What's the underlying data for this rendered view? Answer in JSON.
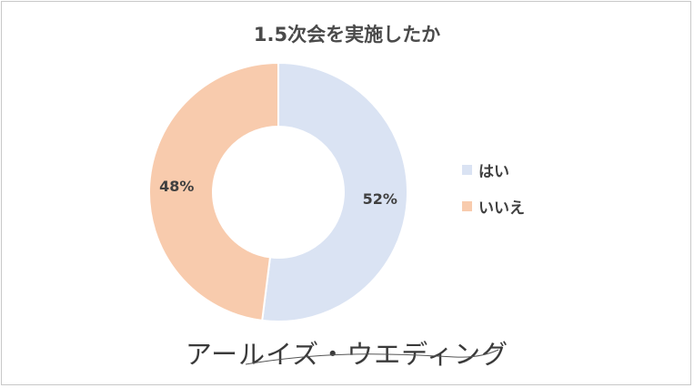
{
  "chart_data": {
    "type": "pie",
    "title": "1.5次会を実施したか",
    "categories": [
      "はい",
      "いいえ"
    ],
    "values": [
      52,
      48
    ],
    "data_labels": [
      "52%",
      "48%"
    ],
    "colors": [
      "#dae3f3",
      "#f8cbad"
    ],
    "donut": true,
    "legend_position": "right"
  },
  "watermark": "アールイズ・ウエディング"
}
